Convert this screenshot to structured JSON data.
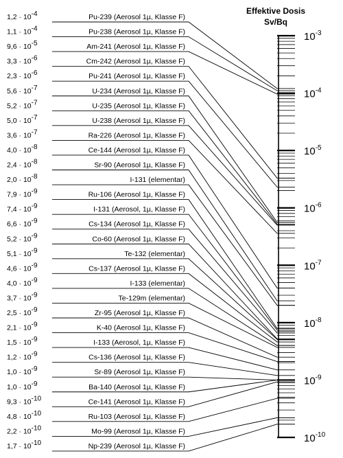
{
  "chart_data": {
    "type": "line",
    "title": "Effektive Dosis",
    "unit": "Sv/Bq",
    "scale": "log",
    "axis_range": [
      1e-10,
      0.001
    ],
    "axis_tick_labels": [
      {
        "base": "10",
        "exp": "-3"
      },
      {
        "base": "10",
        "exp": "-4"
      },
      {
        "base": "10",
        "exp": "-5"
      },
      {
        "base": "10",
        "exp": "-6"
      },
      {
        "base": "10",
        "exp": "-7"
      },
      {
        "base": "10",
        "exp": "-8"
      },
      {
        "base": "10",
        "exp": "-9"
      },
      {
        "base": "10",
        "exp": "-10"
      }
    ],
    "entries": [
      {
        "label": "Pu-239 (Aerosol 1µ, Klasse F)",
        "mant": "1,2",
        "exp": "-4",
        "value": 0.00012
      },
      {
        "label": "Pu-238 (Aerosol 1µ, Klasse F)",
        "mant": "1,1",
        "exp": "-4",
        "value": 0.00011
      },
      {
        "label": "Am-241 (Aerosol 1µ, Klasse F)",
        "mant": "9,6",
        "exp": "-5",
        "value": 9.6e-05
      },
      {
        "label": "Cm-242 (Aerosol 1µ, Klasse F)",
        "mant": "3,3",
        "exp": "-6",
        "value": 3.3e-06
      },
      {
        "label": "Pu-241 (Aerosol 1µ, Klasse F)",
        "mant": "2,3",
        "exp": "-6",
        "value": 2.3e-06
      },
      {
        "label": "U-234 (Aerosol 1µ, Klasse F)",
        "mant": "5,6",
        "exp": "-7",
        "value": 5.6e-07
      },
      {
        "label": "U-235 (Aerosol 1µ, Klasse F)",
        "mant": "5,2",
        "exp": "-7",
        "value": 5.2e-07
      },
      {
        "label": "U-238 (Aerosol 1µ, Klasse F)",
        "mant": "5,0",
        "exp": "-7",
        "value": 5e-07
      },
      {
        "label": "Ra-226 (Aerosol 1µ, Klasse F)",
        "mant": "3,6",
        "exp": "-7",
        "value": 3.6e-07
      },
      {
        "label": "Ce-144 (Aerosol 1µ, Klasse F)",
        "mant": "4,0",
        "exp": "-8",
        "value": 4e-08
      },
      {
        "label": "Sr-90 (Aerosol 1µ, Klasse F)",
        "mant": "2,4",
        "exp": "-8",
        "value": 2.4e-08
      },
      {
        "label": "I-131 (elementar)",
        "mant": "2,0",
        "exp": "-8",
        "value": 2e-08
      },
      {
        "label": "Ru-106 (Aerosol 1µ, Klasse F)",
        "mant": "7,9",
        "exp": "-9",
        "value": 7.9e-09
      },
      {
        "label": "I-131 (Aerosol, 1µ, Klasse F)",
        "mant": "7,4",
        "exp": "-9",
        "value": 7.4e-09
      },
      {
        "label": "Cs-134 (Aerosol 1µ, Klasse F)",
        "mant": "6,6",
        "exp": "-9",
        "value": 6.6e-09
      },
      {
        "label": "Co-60 (Aerosol 1µ, Klasse F)",
        "mant": "5,2",
        "exp": "-9",
        "value": 5.2e-09
      },
      {
        "label": "Te-132 (elementar)",
        "mant": "5,1",
        "exp": "-9",
        "value": 5.1e-09
      },
      {
        "label": "Cs-137 (Aerosol 1µ, Klasse F)",
        "mant": "4,6",
        "exp": "-9",
        "value": 4.6e-09
      },
      {
        "label": "I-133 (elementar)",
        "mant": "4,0",
        "exp": "-9",
        "value": 4e-09
      },
      {
        "label": "Te-129m (elementar)",
        "mant": "3,7",
        "exp": "-9",
        "value": 3.7e-09
      },
      {
        "label": "Zr-95 (Aerosol 1µ, Klasse F)",
        "mant": "2,5",
        "exp": "-9",
        "value": 2.5e-09
      },
      {
        "label": "K-40 (Aerosol 1µ, Klasse F)",
        "mant": "2,1",
        "exp": "-9",
        "value": 2.1e-09
      },
      {
        "label": "I-133 (Aerosol, 1µ, Klasse F)",
        "mant": "1,5",
        "exp": "-9",
        "value": 1.5e-09
      },
      {
        "label": "Cs-136 (Aerosol 1µ, Klasse F)",
        "mant": "1,2",
        "exp": "-9",
        "value": 1.2e-09
      },
      {
        "label": "Sr-89 (Aerosol 1µ, Klasse F)",
        "mant": "1,0",
        "exp": "-9",
        "value": 1e-09
      },
      {
        "label": "Ba-140 (Aerosol 1µ, Klasse F)",
        "mant": "1,0",
        "exp": "-9",
        "value": 1e-09
      },
      {
        "label": "Ce-141 (Aerosol 1µ, Klasse F)",
        "mant": "9,3",
        "exp": "-10",
        "value": 9.3e-10
      },
      {
        "label": "Ru-103 (Aerosol 1µ, Klasse F)",
        "mant": "4,8",
        "exp": "-10",
        "value": 4.8e-10
      },
      {
        "label": "Mo-99 (Aerosol 1µ, Klasse F)",
        "mant": "2,2",
        "exp": "-10",
        "value": 2.2e-10
      },
      {
        "label": "Np-239 (Aerosol 1µ, Klasse F)",
        "mant": "1,7",
        "exp": "-10",
        "value": 1.7e-10
      }
    ]
  }
}
